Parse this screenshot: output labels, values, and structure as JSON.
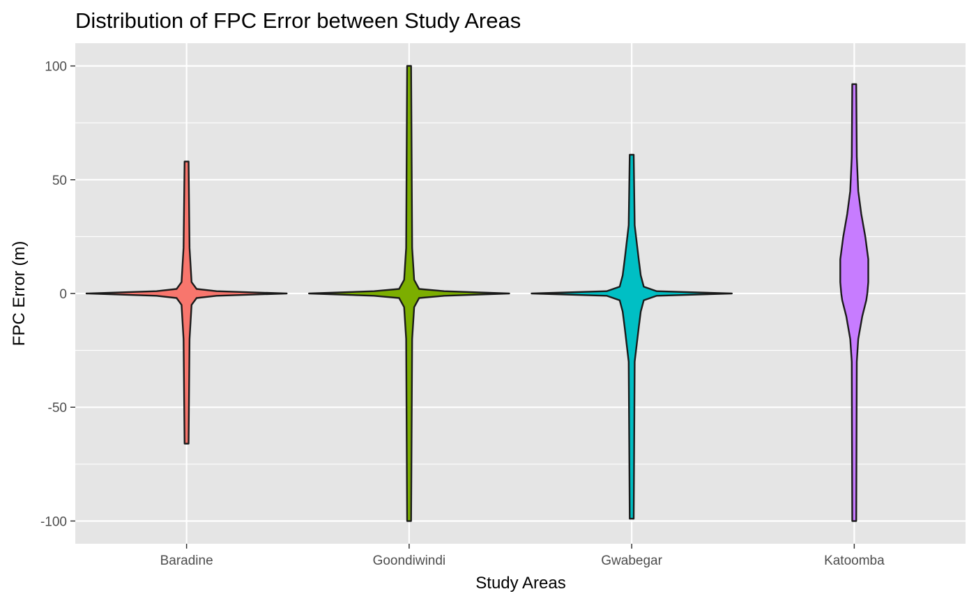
{
  "chart_data": {
    "type": "violin",
    "title": "Distribution of FPC Error between Study Areas",
    "xlabel": "Study Areas",
    "ylabel": "FPC Error (m)",
    "ylim": [
      -110,
      110
    ],
    "yticks": [
      -100,
      -50,
      0,
      50,
      100
    ],
    "ytick_labels": [
      "-100",
      "-50",
      "0",
      "50",
      "100"
    ],
    "grid": true,
    "panel_background": "#e5e5e5",
    "grid_color": "#ffffff",
    "outline_color": "#1a1a1a",
    "categories": [
      "Baradine",
      "Goondiwindi",
      "Gwabegar",
      "Katoomba"
    ],
    "series": [
      {
        "category": "Baradine",
        "color": "#f8766d",
        "min": -66,
        "max": 58,
        "profile": [
          {
            "y": -66,
            "w": 0.02
          },
          {
            "y": -20,
            "w": 0.03
          },
          {
            "y": -5,
            "w": 0.05
          },
          {
            "y": -2,
            "w": 0.1
          },
          {
            "y": -1,
            "w": 0.3
          },
          {
            "y": 0,
            "w": 1.0
          },
          {
            "y": 1,
            "w": 0.3
          },
          {
            "y": 2,
            "w": 0.1
          },
          {
            "y": 5,
            "w": 0.05
          },
          {
            "y": 20,
            "w": 0.03
          },
          {
            "y": 58,
            "w": 0.02
          }
        ]
      },
      {
        "category": "Goondiwindi",
        "color": "#7cae00",
        "min": -100,
        "max": 100,
        "profile": [
          {
            "y": -100,
            "w": 0.02
          },
          {
            "y": -20,
            "w": 0.03
          },
          {
            "y": -6,
            "w": 0.05
          },
          {
            "y": -2,
            "w": 0.1
          },
          {
            "y": -1,
            "w": 0.35
          },
          {
            "y": 0,
            "w": 1.0
          },
          {
            "y": 1,
            "w": 0.35
          },
          {
            "y": 2,
            "w": 0.1
          },
          {
            "y": 6,
            "w": 0.05
          },
          {
            "y": 20,
            "w": 0.03
          },
          {
            "y": 100,
            "w": 0.02
          }
        ]
      },
      {
        "category": "Gwabegar",
        "color": "#00bfc4",
        "min": -99,
        "max": 61,
        "profile": [
          {
            "y": -99,
            "w": 0.02
          },
          {
            "y": -30,
            "w": 0.03
          },
          {
            "y": -15,
            "w": 0.07
          },
          {
            "y": -8,
            "w": 0.09
          },
          {
            "y": -3,
            "w": 0.12
          },
          {
            "y": -1,
            "w": 0.25
          },
          {
            "y": 0,
            "w": 1.0
          },
          {
            "y": 1,
            "w": 0.25
          },
          {
            "y": 3,
            "w": 0.12
          },
          {
            "y": 8,
            "w": 0.09
          },
          {
            "y": 15,
            "w": 0.07
          },
          {
            "y": 30,
            "w": 0.03
          },
          {
            "y": 61,
            "w": 0.02
          }
        ]
      },
      {
        "category": "Katoomba",
        "color": "#c77cff",
        "min": -100,
        "max": 92,
        "profile": [
          {
            "y": -100,
            "w": 0.02
          },
          {
            "y": -30,
            "w": 0.025
          },
          {
            "y": -20,
            "w": 0.04
          },
          {
            "y": -10,
            "w": 0.08
          },
          {
            "y": -3,
            "w": 0.12
          },
          {
            "y": 0,
            "w": 0.13
          },
          {
            "y": 5,
            "w": 0.14
          },
          {
            "y": 15,
            "w": 0.14
          },
          {
            "y": 25,
            "w": 0.11
          },
          {
            "y": 35,
            "w": 0.07
          },
          {
            "y": 45,
            "w": 0.04
          },
          {
            "y": 60,
            "w": 0.025
          },
          {
            "y": 92,
            "w": 0.02
          }
        ]
      }
    ]
  }
}
